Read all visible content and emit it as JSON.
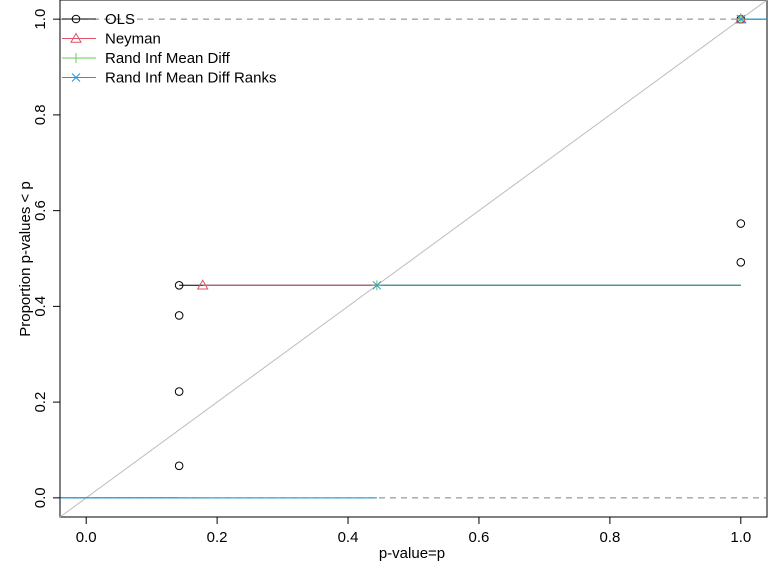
{
  "chart_data": {
    "type": "line",
    "title": "",
    "xlabel": "p-value=p",
    "ylabel": "Proportion p-values < p",
    "xlim": [
      -0.04,
      1.04
    ],
    "ylim": [
      -0.04,
      1.04
    ],
    "x_ticks": [
      0.0,
      0.2,
      0.4,
      0.6,
      0.8,
      1.0
    ],
    "x_tick_labels": [
      "0.0",
      "0.2",
      "0.4",
      "0.6",
      "0.8",
      "1.0"
    ],
    "y_ticks": [
      0.0,
      0.2,
      0.4,
      0.6,
      0.8,
      1.0
    ],
    "y_tick_labels": [
      "0.0",
      "0.2",
      "0.4",
      "0.6",
      "0.8",
      "1.0"
    ],
    "reference_lines": {
      "diagonal": {
        "from": [
          0,
          0
        ],
        "to": [
          1,
          1
        ],
        "color": "#bdbdbd"
      },
      "horizontal_dashed": [
        0.0,
        1.0
      ]
    },
    "legend_position": "top-left",
    "series": [
      {
        "name": "OLS",
        "color": "#000000",
        "marker": "circle",
        "steps": [
          {
            "x": [
              -0.04,
              0.142
            ],
            "y": 0.0
          },
          {
            "x": [
              0.142,
              1.0
            ],
            "y": 0.444
          },
          {
            "x": [
              1.0,
              1.04
            ],
            "y": 1.0
          }
        ],
        "points": [
          {
            "x": 0.142,
            "y": 0.444
          },
          {
            "x": 0.142,
            "y": 0.381
          },
          {
            "x": 0.142,
            "y": 0.222
          },
          {
            "x": 0.142,
            "y": 0.067
          },
          {
            "x": 1.0,
            "y": 0.573
          },
          {
            "x": 1.0,
            "y": 0.492
          },
          {
            "x": 1.0,
            "y": 1.0
          }
        ]
      },
      {
        "name": "Neyman",
        "color": "#df536b",
        "marker": "triangle",
        "steps": [
          {
            "x": [
              -0.04,
              0.178
            ],
            "y": 0.0
          },
          {
            "x": [
              0.178,
              1.0
            ],
            "y": 0.444
          },
          {
            "x": [
              1.0,
              1.04
            ],
            "y": 1.0
          }
        ],
        "points": [
          {
            "x": 0.178,
            "y": 0.444
          },
          {
            "x": 1.0,
            "y": 1.0
          }
        ]
      },
      {
        "name": "Rand Inf Mean Diff",
        "color": "#61d04f",
        "marker": "plus",
        "steps": [
          {
            "x": [
              -0.04,
              0.444
            ],
            "y": 0.0
          },
          {
            "x": [
              0.444,
              1.0
            ],
            "y": 0.444
          },
          {
            "x": [
              1.0,
              1.04
            ],
            "y": 1.0
          }
        ],
        "points": [
          {
            "x": 0.444,
            "y": 0.444
          },
          {
            "x": 1.0,
            "y": 1.0
          }
        ]
      },
      {
        "name": "Rand Inf Mean Diff Ranks",
        "color": "#2297e6",
        "marker": "cross",
        "steps": [
          {
            "x": [
              -0.04,
              0.444
            ],
            "y": 0.0
          },
          {
            "x": [
              0.444,
              1.0
            ],
            "y": 0.444
          },
          {
            "x": [
              1.0,
              1.04
            ],
            "y": 1.0
          }
        ],
        "points": [
          {
            "x": 0.444,
            "y": 0.444
          },
          {
            "x": 1.0,
            "y": 1.0
          }
        ]
      }
    ]
  }
}
